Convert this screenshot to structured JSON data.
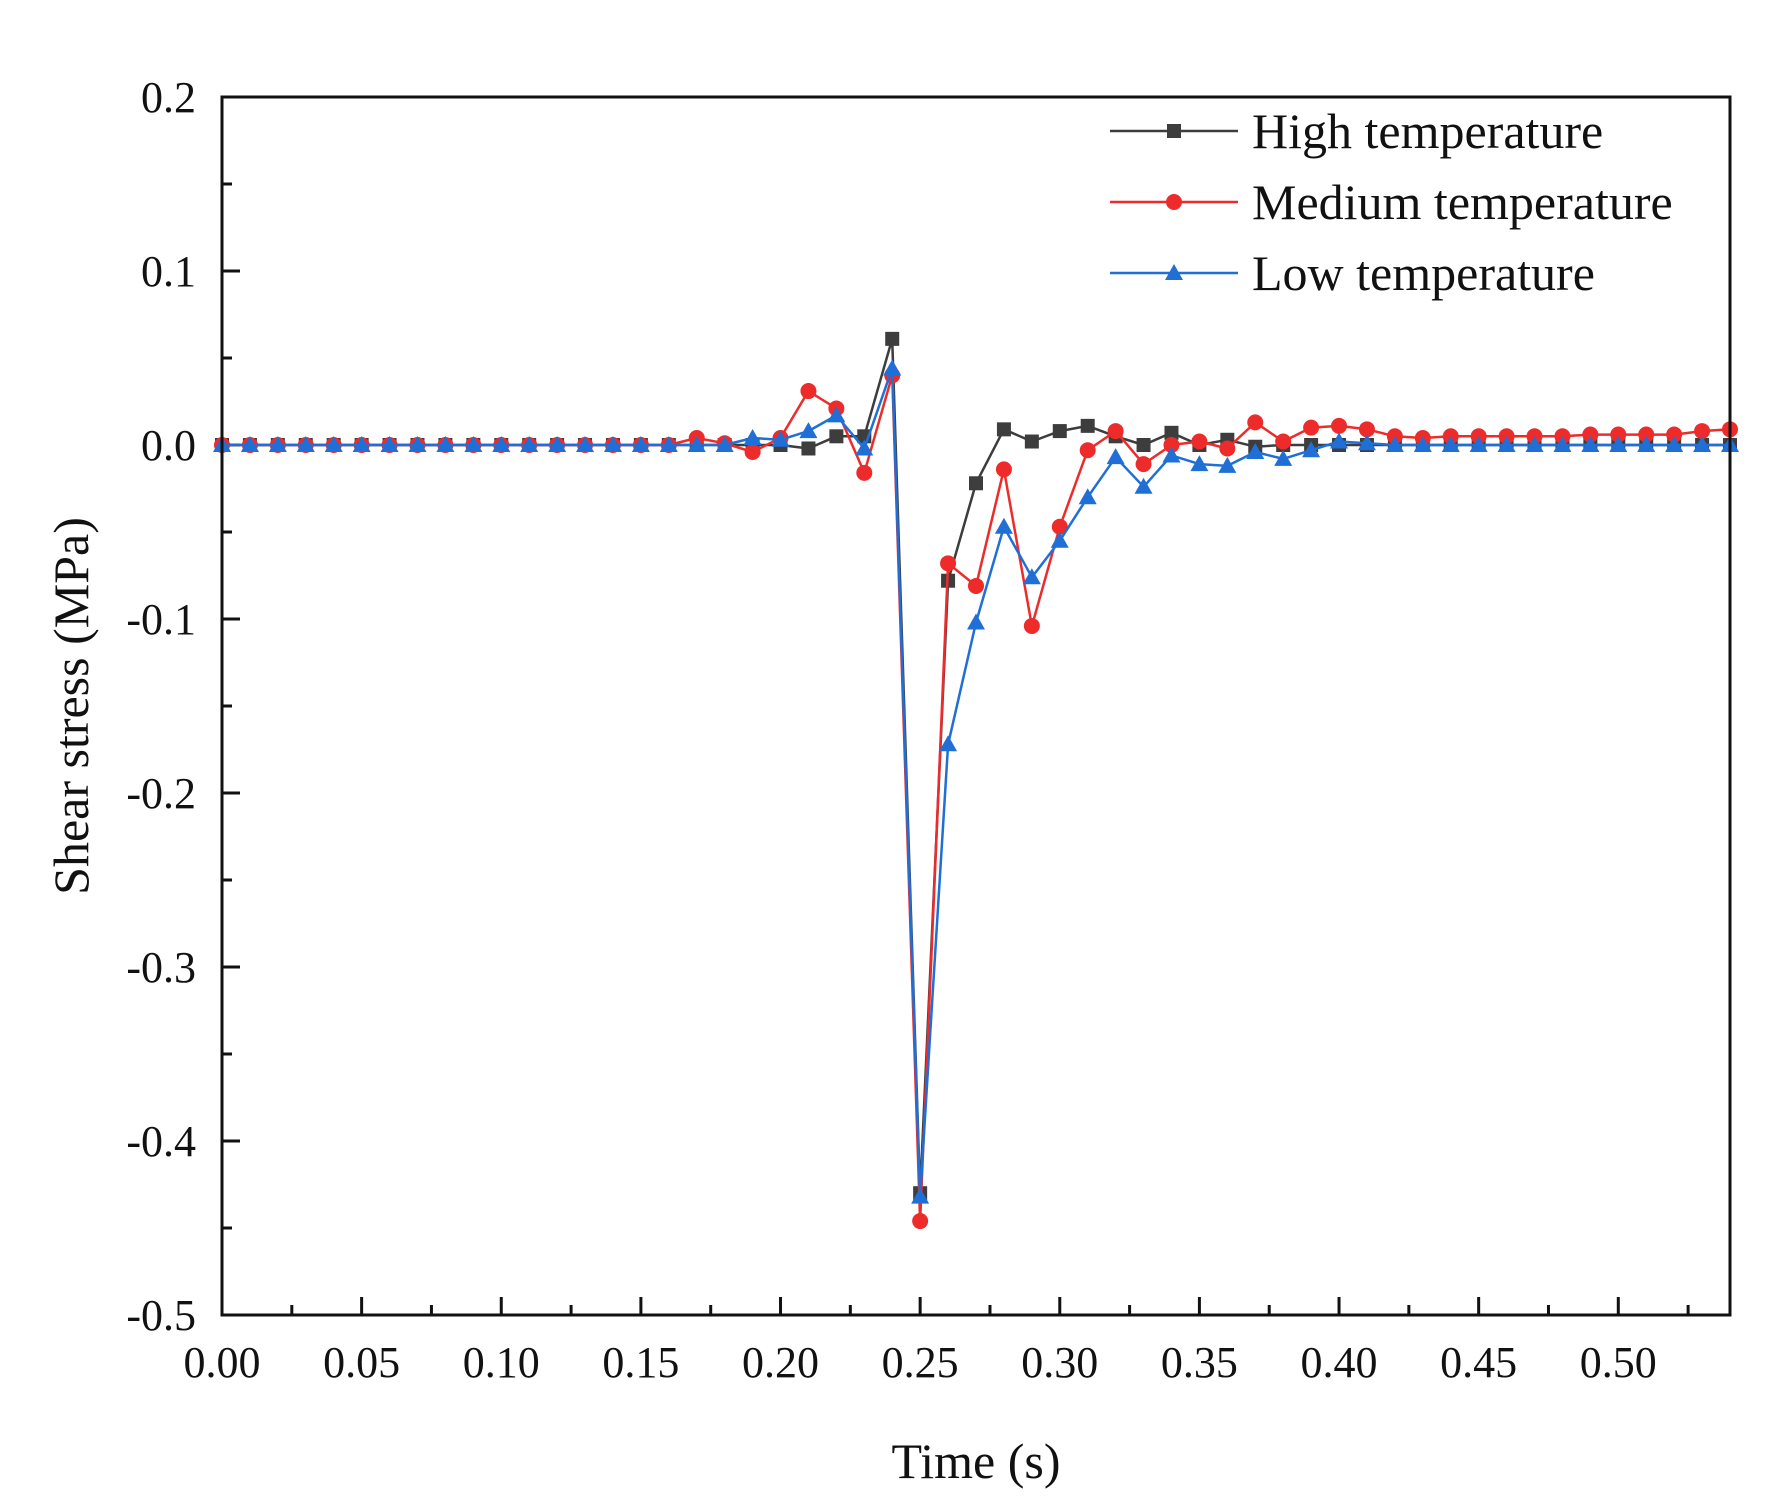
{
  "chart_data": {
    "type": "line",
    "title": "",
    "xlabel": "Time (s)",
    "ylabel": "Shear stress (MPa)",
    "xlim": [
      0.0,
      0.54
    ],
    "ylim": [
      -0.5,
      0.2
    ],
    "x_ticks": [
      0.0,
      0.05,
      0.1,
      0.15,
      0.2,
      0.25,
      0.3,
      0.35,
      0.4,
      0.45,
      0.5
    ],
    "x_tick_labels": [
      "0.00",
      "0.05",
      "0.10",
      "0.15",
      "0.20",
      "0.25",
      "0.30",
      "0.35",
      "0.40",
      "0.45",
      "0.50"
    ],
    "y_ticks": [
      0.2,
      0.1,
      0.0,
      -0.1,
      -0.2,
      -0.3,
      -0.4,
      -0.5
    ],
    "y_tick_labels": [
      "0.2",
      "0.1",
      "0.0",
      "-0.1",
      "-0.2",
      "-0.3",
      "-0.4",
      "-0.5"
    ],
    "legend_position": "top-right",
    "grid": false,
    "x": [
      0.0,
      0.01,
      0.02,
      0.03,
      0.04,
      0.05,
      0.06,
      0.07,
      0.08,
      0.09,
      0.1,
      0.11,
      0.12,
      0.13,
      0.14,
      0.15,
      0.16,
      0.17,
      0.18,
      0.19,
      0.2,
      0.21,
      0.22,
      0.23,
      0.24,
      0.25,
      0.26,
      0.27,
      0.28,
      0.29,
      0.3,
      0.31,
      0.32,
      0.33,
      0.34,
      0.35,
      0.36,
      0.37,
      0.38,
      0.39,
      0.4,
      0.41,
      0.42,
      0.43,
      0.44,
      0.45,
      0.46,
      0.47,
      0.48,
      0.49,
      0.5,
      0.51,
      0.52,
      0.53,
      0.54
    ],
    "series": [
      {
        "name": "High temperature",
        "color": "#3d3d3d",
        "marker": "square",
        "values": [
          0,
          0,
          0,
          0,
          0,
          0,
          0,
          0,
          0,
          0,
          0,
          0,
          0,
          0,
          0,
          0,
          0,
          0,
          0,
          0,
          0,
          -0.002,
          0.005,
          0.005,
          0.061,
          -0.43,
          -0.078,
          -0.022,
          0.009,
          0.002,
          0.008,
          0.011,
          0.005,
          0,
          0.007,
          0,
          0.003,
          -0.001,
          0,
          0,
          0,
          0,
          0,
          0,
          0,
          0,
          0,
          0,
          0,
          0,
          0,
          0,
          0,
          0,
          0
        ]
      },
      {
        "name": "Medium temperature",
        "color": "#ee2b2b",
        "marker": "circle",
        "values": [
          0,
          0,
          0,
          0,
          0,
          0,
          0,
          0,
          0,
          0,
          0,
          0,
          0,
          0,
          0,
          0,
          0,
          0.004,
          0.001,
          -0.004,
          0.004,
          0.031,
          0.021,
          -0.016,
          0.04,
          -0.446,
          -0.068,
          -0.081,
          -0.014,
          -0.104,
          -0.047,
          -0.003,
          0.008,
          -0.011,
          0,
          0.002,
          -0.002,
          0.013,
          0.002,
          0.01,
          0.011,
          0.009,
          0.005,
          0.004,
          0.005,
          0.005,
          0.005,
          0.005,
          0.005,
          0.006,
          0.006,
          0.006,
          0.006,
          0.008,
          0.009
        ]
      },
      {
        "name": "Low temperature",
        "color": "#1f6fd6",
        "marker": "triangle",
        "values": [
          0,
          0,
          0,
          0,
          0,
          0,
          0,
          0,
          0,
          0,
          0,
          0,
          0,
          0,
          0,
          0,
          0,
          0,
          0,
          0.004,
          0.003,
          0.008,
          0.017,
          -0.002,
          0.044,
          -0.432,
          -0.172,
          -0.102,
          -0.047,
          -0.076,
          -0.055,
          -0.03,
          -0.007,
          -0.024,
          -0.006,
          -0.011,
          -0.012,
          -0.004,
          -0.008,
          -0.003,
          0.002,
          0.001,
          0,
          0,
          0,
          0,
          0,
          0,
          0,
          0,
          0,
          0,
          0,
          0,
          0
        ]
      }
    ]
  }
}
